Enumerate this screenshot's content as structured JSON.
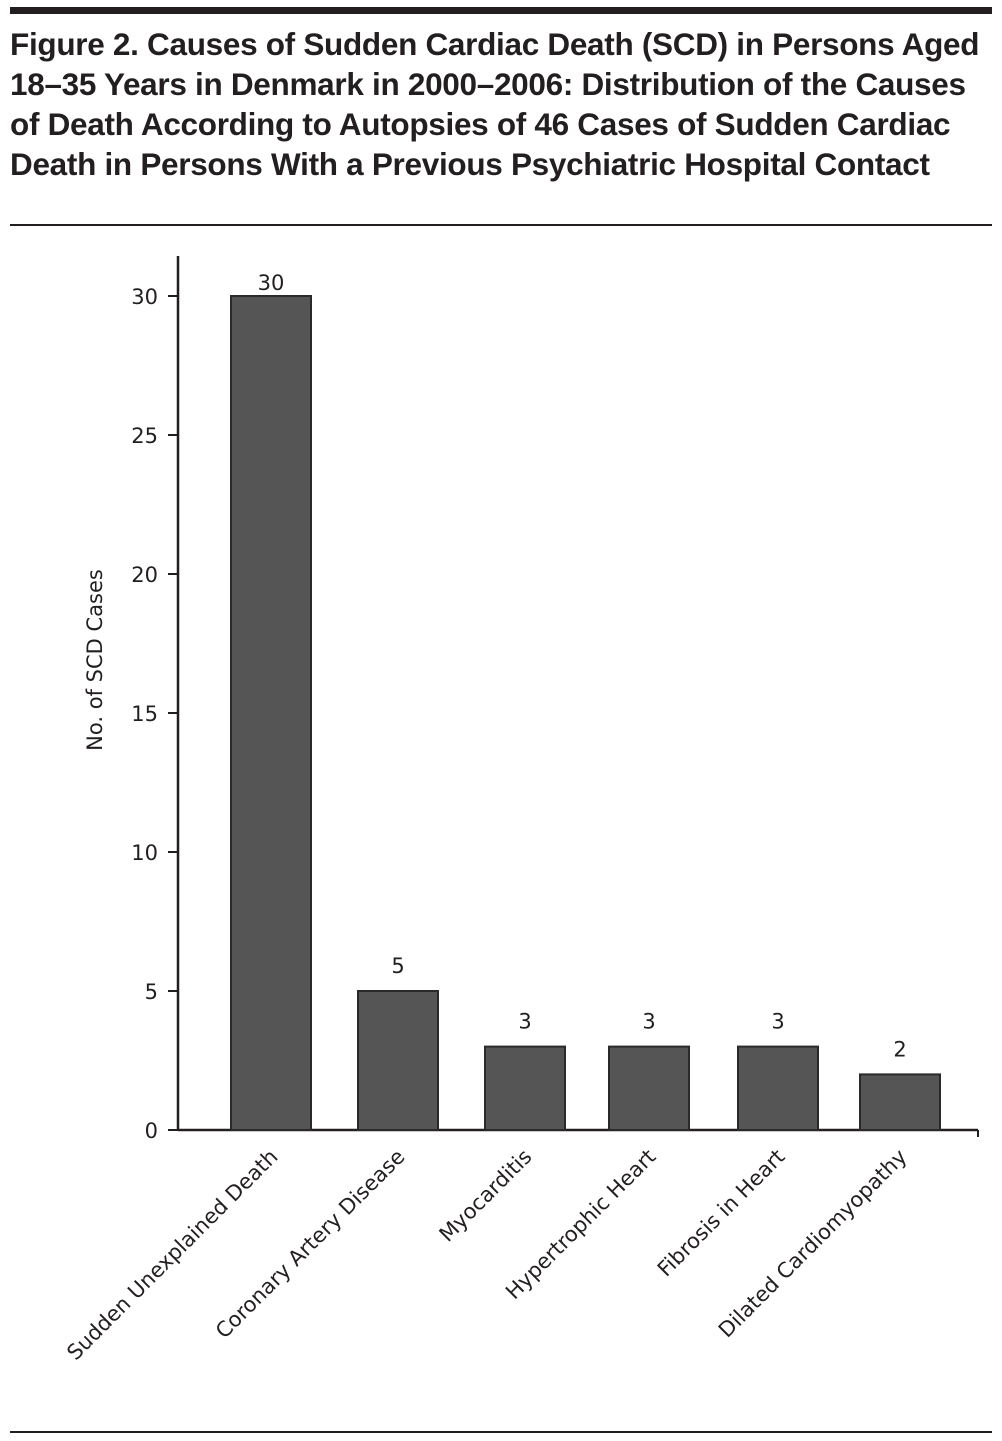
{
  "title": "Figure 2. Causes of Sudden Cardiac Death (SCD) in Persons Aged 18–35 Years in Denmark in 2000–2006: Distribution of the Causes of Death According to Autopsies of 46 Cases of Sudden Cardiac Death in Persons With a Previous Psychiatric Hospital Contact",
  "chart_data": {
    "type": "bar",
    "title": "Figure 2. Causes of Sudden Cardiac Death (SCD) in Persons Aged 18–35 Years in Denmark in 2000–2006: Distribution of the Causes of Death According to Autopsies of 46 Cases of Sudden Cardiac Death in Persons With a Previous Psychiatric Hospital Contact",
    "categories": [
      "Sudden Unexplained Death",
      "Coronary Artery Disease",
      "Myocarditis",
      "Hypertrophic  Heart",
      "Fibrosis in Heart",
      "Dilated Cardiomyopathy"
    ],
    "values": [
      30,
      5,
      3,
      3,
      3,
      2
    ],
    "data_labels": [
      "30",
      "5",
      "3",
      "3",
      "3",
      "2"
    ],
    "xlabel": "",
    "ylabel": "No. of SCD Cases",
    "ylim": [
      0,
      31.5
    ],
    "yticks": [
      0,
      5,
      10,
      15,
      20,
      25,
      30
    ],
    "grid": false,
    "bar_color": "#555555"
  }
}
